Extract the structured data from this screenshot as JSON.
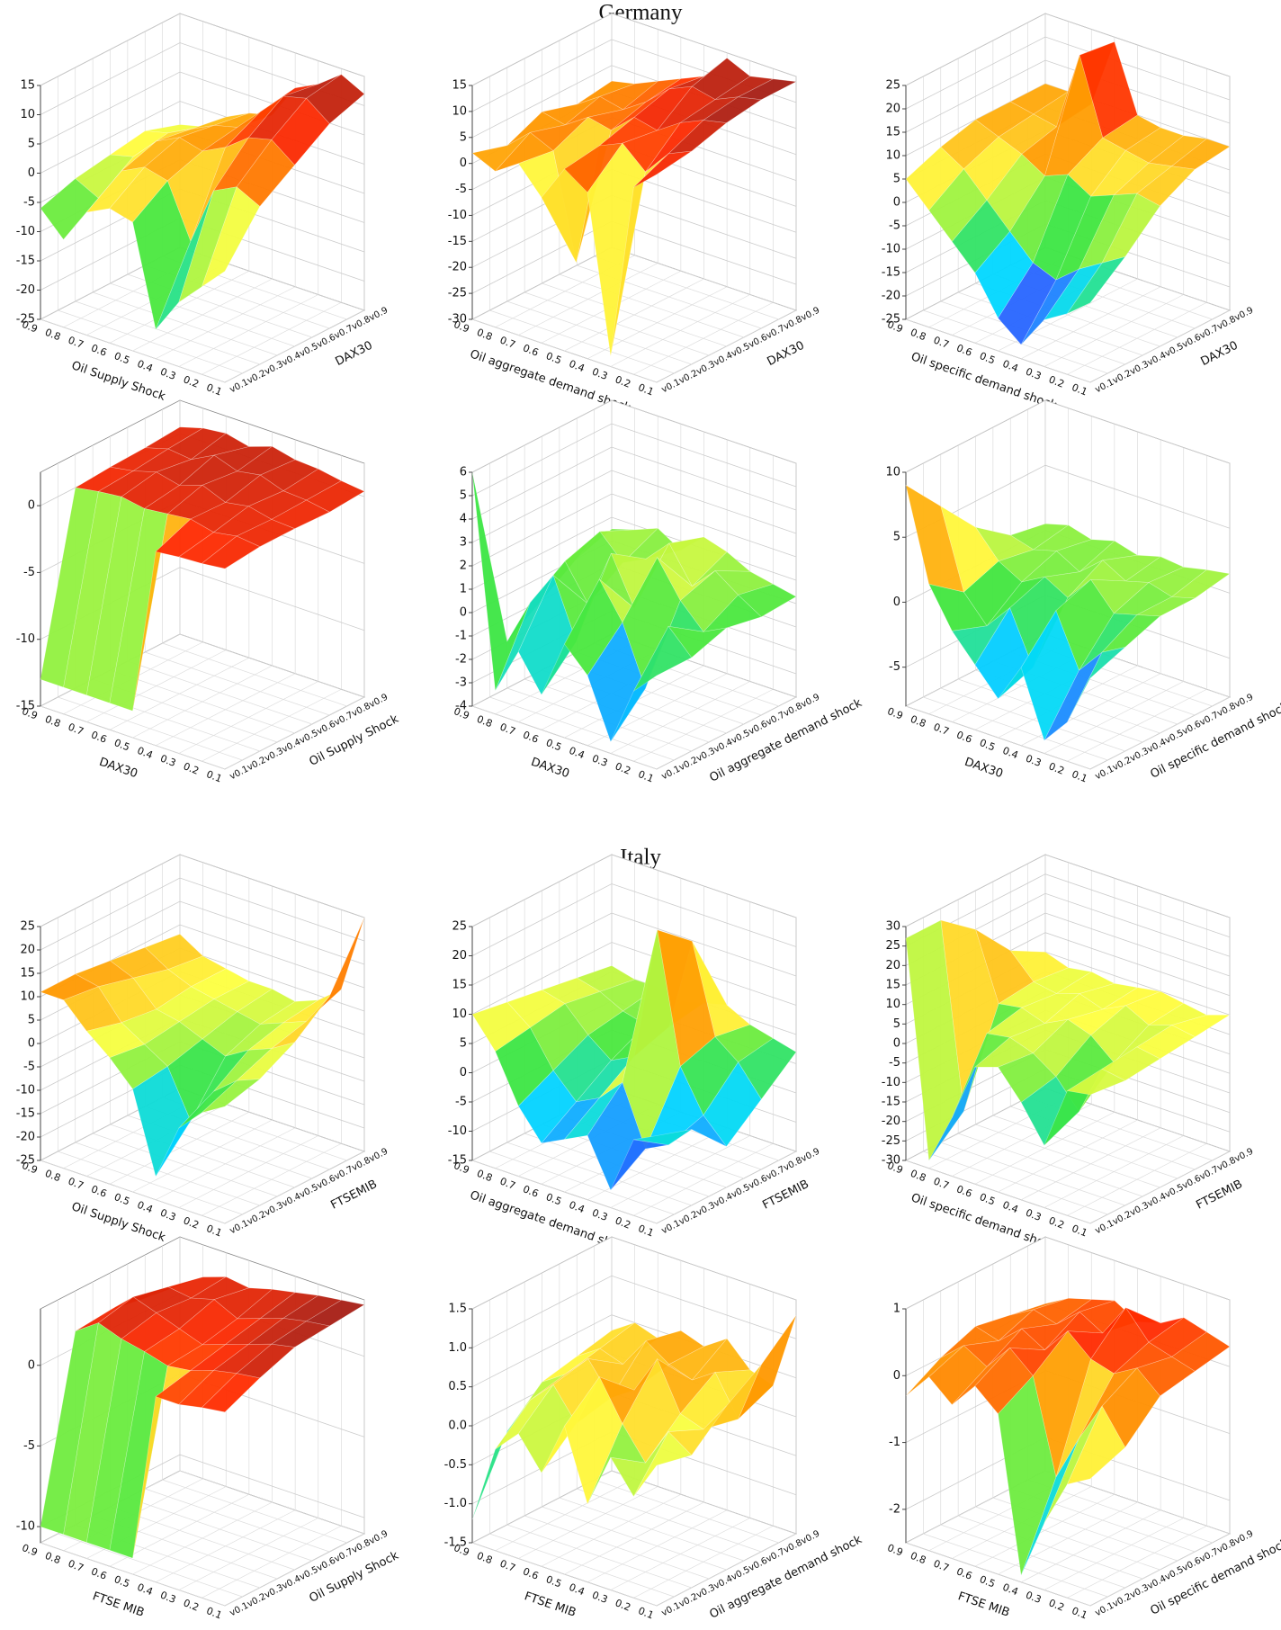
{
  "titles": [
    "Germany",
    "Italy"
  ],
  "colormap": [
    "#4b1a6e",
    "#3a2cff",
    "#00d8ff",
    "#3ee63e",
    "#ffff40",
    "#ff9a00",
    "#ff2a00",
    "#8b1a1a"
  ],
  "chart_data": [
    {
      "type": "surface",
      "xlabel": "Oil Supply Shock",
      "ylabel": "DAX30",
      "categories": [
        "0.9",
        "0.8",
        "0.7",
        "0.6",
        "0.5",
        "0.4",
        "0.3",
        "0.2",
        "0.1"
      ],
      "y_categories": [
        "v0.1",
        "v0.2",
        "v0.3",
        "v0.4",
        "v0.5",
        "v0.6",
        "v0.7",
        "v0.8",
        "v0.9"
      ],
      "zlim": [
        -25,
        15
      ],
      "zticks": [
        -25,
        -20,
        -15,
        -10,
        -5,
        0,
        5,
        10,
        15
      ],
      "grid": true,
      "z": [
        [
          -6,
          -10,
          -4,
          -2,
          -3,
          -20,
          -14,
          -10,
          -6
        ],
        [
          -4,
          -6,
          0,
          2,
          1,
          -8,
          2,
          4,
          2
        ],
        [
          -3,
          -2,
          2,
          4,
          3,
          5,
          8,
          9,
          6
        ],
        [
          -2,
          -1,
          1,
          3,
          4,
          8,
          12,
          13,
          10
        ],
        [
          -4,
          -3,
          0,
          2,
          3,
          9,
          11,
          14,
          12
        ]
      ]
    },
    {
      "type": "surface",
      "xlabel": "Oil aggregate demand shock",
      "ylabel": "DAX30",
      "categories": [
        "0.9",
        "0.8",
        "0.7",
        "0.6",
        "0.5",
        "0.4",
        "0.3",
        "0.2",
        "0.1"
      ],
      "y_categories": [
        "v0.1",
        "v0.2",
        "v0.3",
        "v0.4",
        "v0.5",
        "v0.6",
        "v0.7",
        "v0.8",
        "v0.9"
      ],
      "zlim": [
        -30,
        15
      ],
      "zticks": [
        -30,
        -25,
        -20,
        -15,
        -10,
        -5,
        0,
        5,
        10,
        15
      ],
      "grid": true,
      "z": [
        [
          2,
          0,
          3,
          -2,
          5,
          2,
          -28,
          6,
          10
        ],
        [
          0,
          4,
          2,
          -18,
          6,
          8,
          4,
          9,
          11
        ],
        [
          3,
          2,
          5,
          4,
          8,
          7,
          10,
          12,
          13
        ],
        [
          1,
          4,
          3,
          6,
          10,
          12,
          11,
          13,
          14
        ],
        [
          2,
          3,
          5,
          7,
          9,
          14,
          12,
          13,
          14
        ]
      ]
    },
    {
      "type": "surface",
      "xlabel": "Oil specific demand shock",
      "ylabel": "DAX30",
      "categories": [
        "0.9",
        "0.8",
        "0.7",
        "0.6",
        "0.5",
        "0.4",
        "0.3",
        "0.2",
        "0.1"
      ],
      "y_categories": [
        "v0.1",
        "v0.2",
        "v0.3",
        "v0.4",
        "v0.5",
        "v0.6",
        "v0.7",
        "v0.8",
        "v0.9"
      ],
      "zlim": [
        -25,
        25
      ],
      "zticks": [
        -25,
        -20,
        -15,
        -10,
        -5,
        0,
        5,
        10,
        15,
        20,
        25
      ],
      "grid": true,
      "z": [
        [
          5,
          0,
          -5,
          -10,
          -18,
          -22,
          -15,
          -12,
          -8
        ],
        [
          8,
          5,
          0,
          -5,
          -10,
          -12,
          -8,
          -5,
          -2
        ],
        [
          10,
          8,
          6,
          3,
          5,
          2,
          4,
          6,
          5
        ],
        [
          10,
          9,
          8,
          25,
          9,
          8,
          7,
          8,
          9
        ],
        [
          10,
          10,
          9,
          24,
          10,
          9,
          9,
          10,
          10
        ]
      ]
    },
    {
      "type": "surface",
      "xlabel": "DAX30",
      "ylabel": "Oil Supply Shock",
      "categories": [
        "0.9",
        "0.8",
        "0.7",
        "0.6",
        "0.5",
        "0.4",
        "0.3",
        "0.2",
        "0.1"
      ],
      "y_categories": [
        "v0.1",
        "v0.2",
        "v0.3",
        "v0.4",
        "v0.5",
        "v0.6",
        "v0.7",
        "v0.8",
        "v0.9"
      ],
      "zlim": [
        -15,
        2.5
      ],
      "zticks": [
        -15,
        -10,
        -5,
        0
      ],
      "grid": true,
      "z": [
        [
          -13,
          -13,
          -13,
          -13,
          -13,
          -0.5,
          -0.3,
          -0.2,
          0
        ],
        [
          0,
          0.3,
          0.5,
          0.2,
          0.4,
          0.6,
          0.2,
          0.5,
          0.3
        ],
        [
          0.2,
          0.5,
          1,
          0.6,
          1.2,
          0.5,
          0.8,
          0.4,
          0.3
        ],
        [
          0.3,
          0.8,
          0.6,
          1.5,
          0.9,
          1.2,
          0.6,
          0.5,
          0.2
        ],
        [
          0.5,
          1,
          1.2,
          0.8,
          1.4,
          1,
          0.9,
          0.6,
          0.4
        ]
      ]
    },
    {
      "type": "surface",
      "xlabel": "DAX30",
      "ylabel": "Oil aggregate demand shock",
      "categories": [
        "0.9",
        "0.8",
        "0.7",
        "0.6",
        "0.5",
        "0.4",
        "0.3",
        "0.2",
        "0.1"
      ],
      "y_categories": [
        "v0.1",
        "v0.2",
        "v0.3",
        "v0.4",
        "v0.5",
        "v0.6",
        "v0.7",
        "v0.8",
        "v0.9"
      ],
      "zlim": [
        -4,
        6
      ],
      "zticks": [
        -4,
        -3,
        -2,
        -1,
        0,
        1,
        2,
        3,
        4,
        5,
        6
      ],
      "grid": true,
      "z": [
        [
          6,
          -3,
          -1,
          -2.5,
          0,
          -1,
          -3.5,
          -1,
          0
        ],
        [
          -2,
          0,
          1.5,
          -1,
          2,
          0.5,
          -2,
          1,
          0
        ],
        [
          -1,
          1,
          -0.5,
          2,
          0,
          2.5,
          1,
          0,
          0.5
        ],
        [
          0,
          1.5,
          0.5,
          1,
          2,
          0.5,
          1.5,
          0.8,
          0.2
        ],
        [
          0.5,
          0.8,
          1.2,
          0.6,
          1.5,
          1.2,
          0.7,
          0.5,
          0.3
        ]
      ]
    },
    {
      "type": "surface",
      "xlabel": "DAX30",
      "ylabel": "Oil specific demand shock",
      "categories": [
        "0.9",
        "0.8",
        "0.7",
        "0.6",
        "0.5",
        "0.4",
        "0.3",
        "0.2",
        "0.1"
      ],
      "y_categories": [
        "v0.1",
        "v0.2",
        "v0.3",
        "v0.4",
        "v0.5",
        "v0.6",
        "v0.7",
        "v0.8",
        "v0.9"
      ],
      "zlim": [
        -8,
        10
      ],
      "zticks": [
        -5,
        0,
        5,
        10
      ],
      "grid": true,
      "z": [
        [
          9,
          2,
          -1,
          -3,
          -5,
          -2,
          -7,
          -5,
          -1
        ],
        [
          6,
          0,
          -2,
          0,
          -4,
          1,
          -3,
          -1,
          0
        ],
        [
          3,
          1,
          0,
          1,
          0,
          2,
          0,
          0.5,
          1
        ],
        [
          1,
          0.5,
          1,
          0,
          1.5,
          0.5,
          1,
          0.5,
          1
        ],
        [
          0.5,
          1,
          0.5,
          1,
          0.5,
          1,
          0.8,
          1.2,
          1.5
        ]
      ]
    },
    {
      "type": "surface",
      "xlabel": "Oil Supply Shock",
      "ylabel": "FTSEMIB",
      "categories": [
        "0.9",
        "0.8",
        "0.7",
        "0.6",
        "0.5",
        "0.4",
        "0.3",
        "0.2",
        "0.1"
      ],
      "y_categories": [
        "v0.1",
        "v0.2",
        "v0.3",
        "v0.4",
        "v0.5",
        "v0.6",
        "v0.7",
        "v0.8",
        "v0.9"
      ],
      "zlim": [
        -25,
        25
      ],
      "zticks": [
        -25,
        -20,
        -15,
        -10,
        -5,
        0,
        5,
        10,
        15,
        20,
        25
      ],
      "grid": true,
      "z": [
        [
          11,
          11,
          6,
          2,
          -3,
          -20,
          -8,
          -3,
          0
        ],
        [
          11,
          10,
          4,
          1,
          -2,
          -12,
          -4,
          0,
          2
        ],
        [
          10,
          8,
          3,
          2,
          0,
          -2,
          1,
          3,
          6
        ],
        [
          9,
          6,
          4,
          3,
          2,
          1,
          3,
          5,
          12
        ],
        [
          8,
          5,
          4,
          3,
          3,
          2,
          4,
          8,
          25
        ]
      ]
    },
    {
      "type": "surface",
      "xlabel": "Oil aggregate demand shock",
      "ylabel": "FTSEMIB",
      "categories": [
        "0.9",
        "0.8",
        "0.7",
        "0.6",
        "0.5",
        "0.4",
        "0.3",
        "0.2",
        "0.1"
      ],
      "y_categories": [
        "v0.1",
        "v0.2",
        "v0.3",
        "v0.4",
        "v0.5",
        "v0.6",
        "v0.7",
        "v0.8",
        "v0.9"
      ],
      "zlim": [
        -15,
        25
      ],
      "zticks": [
        -15,
        -10,
        -5,
        0,
        5,
        10,
        15,
        20,
        25
      ],
      "grid": true,
      "z": [
        [
          10,
          5,
          -3,
          -8,
          -6,
          -4,
          -12,
          -2,
          0
        ],
        [
          9,
          6,
          0,
          -4,
          -2,
          2,
          -8,
          -6,
          -2
        ],
        [
          8,
          7,
          3,
          0,
          2,
          25,
          3,
          -4,
          -8
        ],
        [
          7,
          6,
          4,
          3,
          4,
          20,
          5,
          2,
          -3
        ],
        [
          6,
          5,
          5,
          4,
          5,
          6,
          4,
          3,
          2
        ]
      ]
    },
    {
      "type": "surface",
      "xlabel": "Oil specific demand shock",
      "ylabel": "FTSEMIB",
      "categories": [
        "0.9",
        "0.8",
        "0.7",
        "0.6",
        "0.5",
        "0.4",
        "0.3",
        "0.2",
        "0.1"
      ],
      "y_categories": [
        "v0.1",
        "v0.2",
        "v0.3",
        "v0.4",
        "v0.5",
        "v0.6",
        "v0.7",
        "v0.8",
        "v0.9"
      ],
      "zlim": [
        -30,
        30
      ],
      "zticks": [
        -30,
        -25,
        -20,
        -15,
        -10,
        -5,
        0,
        5,
        10,
        15,
        20,
        25,
        30
      ],
      "grid": true,
      "z": [
        [
          27,
          -28,
          -15,
          0,
          2,
          -5,
          -14,
          2,
          3
        ],
        [
          27,
          -20,
          2,
          3,
          1,
          -3,
          -10,
          3,
          2
        ],
        [
          20,
          3,
          4,
          2,
          5,
          3,
          -2,
          4,
          3
        ],
        [
          10,
          4,
          3,
          5,
          3,
          6,
          3,
          5,
          4
        ],
        [
          5,
          3,
          4,
          3,
          4,
          5,
          4,
          3,
          5
        ]
      ]
    },
    {
      "type": "surface",
      "xlabel": "FTSE MIB",
      "ylabel": "Oil Supply Shock",
      "categories": [
        "0.9",
        "0.8",
        "0.7",
        "0.6",
        "0.5",
        "0.4",
        "0.3",
        "0.2",
        "0.1"
      ],
      "y_categories": [
        "v0.1",
        "v0.2",
        "v0.3",
        "v0.4",
        "v0.5",
        "v0.6",
        "v0.7",
        "v0.8",
        "v0.9"
      ],
      "zlim": [
        -11,
        3.5
      ],
      "zticks": [
        -10,
        -5,
        0
      ],
      "grid": true,
      "z": [
        [
          -10,
          -10,
          -10,
          -10,
          -10,
          0.5,
          0.5,
          0.8,
          1
        ],
        [
          1,
          2,
          1.5,
          1.2,
          0.8,
          1,
          1.5,
          1.8,
          2
        ],
        [
          1.2,
          2.5,
          2,
          1.5,
          1,
          1.5,
          2,
          2.5,
          2.8
        ],
        [
          0.8,
          2,
          1.8,
          2.2,
          1.5,
          2,
          2.5,
          2.8,
          3
        ],
        [
          0.5,
          1.5,
          2,
          1.8,
          2.2,
          2.5,
          2.8,
          3,
          3.2
        ]
      ]
    },
    {
      "type": "surface",
      "xlabel": "FTSE MIB",
      "ylabel": "Oil aggregate demand shock",
      "categories": [
        "0.9",
        "0.8",
        "0.7",
        "0.6",
        "0.5",
        "0.4",
        "0.3",
        "0.2",
        "0.1"
      ],
      "y_categories": [
        "v0.1",
        "v0.2",
        "v0.3",
        "v0.4",
        "v0.5",
        "v0.6",
        "v0.7",
        "v0.8",
        "v0.9"
      ],
      "zlim": [
        -1.5,
        1.5
      ],
      "zticks": [
        -1.5,
        {
          "value": -1,
          "label": "-1.0"
        },
        -0.5,
        {
          "value": 0,
          "label": "0.0"
        },
        0.5,
        {
          "value": 1,
          "label": "1.0"
        },
        1.5
      ],
      "grid": true,
      "z": [
        [
          -1.2,
          -0.2,
          0.1,
          -0.3,
          0.4,
          -0.5,
          0.2,
          -0.2,
          0.3
        ],
        [
          -0.3,
          0.2,
          0.5,
          0.1,
          0.8,
          0.3,
          -0.1,
          0.4,
          0.2
        ],
        [
          0.1,
          0.3,
          0.6,
          0.2,
          0.4,
          0.9,
          0.3,
          0.2,
          0.6
        ],
        [
          0.2,
          0.4,
          0.3,
          0.7,
          0.5,
          0.4,
          0.6,
          0.1,
          0.9
        ],
        [
          0.3,
          0.5,
          0.4,
          0.6,
          0.5,
          0.7,
          0.4,
          0.3,
          1.3
        ]
      ]
    },
    {
      "type": "surface",
      "xlabel": "FTSE MIB",
      "ylabel": "Oil specific demand shock",
      "categories": [
        "0.9",
        "0.8",
        "0.7",
        "0.6",
        "0.5",
        "0.4",
        "0.3",
        "0.2",
        "0.1"
      ],
      "y_categories": [
        "v0.1",
        "v0.2",
        "v0.3",
        "v0.4",
        "v0.5",
        "v0.6",
        "v0.7",
        "v0.8",
        "v0.9"
      ],
      "zlim": [
        -2.5,
        1
      ],
      "zticks": [
        -2,
        -1,
        0,
        1
      ],
      "grid": true,
      "z": [
        [
          -0.3,
          0.1,
          -0.2,
          0.2,
          -0.1,
          -2.4,
          -1.5,
          -0.8,
          -0.6
        ],
        [
          0,
          0.3,
          0.1,
          0.5,
          0.2,
          -1.2,
          -0.5,
          0.1,
          -0.4
        ],
        [
          0.2,
          0.1,
          0.4,
          0.2,
          0.6,
          0.3,
          0.2,
          0.4,
          0.1
        ],
        [
          0.1,
          0.3,
          0.2,
          0.5,
          0.3,
          0.8,
          0.4,
          0.3,
          0.2
        ],
        [
          0,
          0.2,
          0.3,
          0.4,
          0.2,
          0.3,
          0.5,
          0.4,
          0.3
        ]
      ]
    }
  ]
}
